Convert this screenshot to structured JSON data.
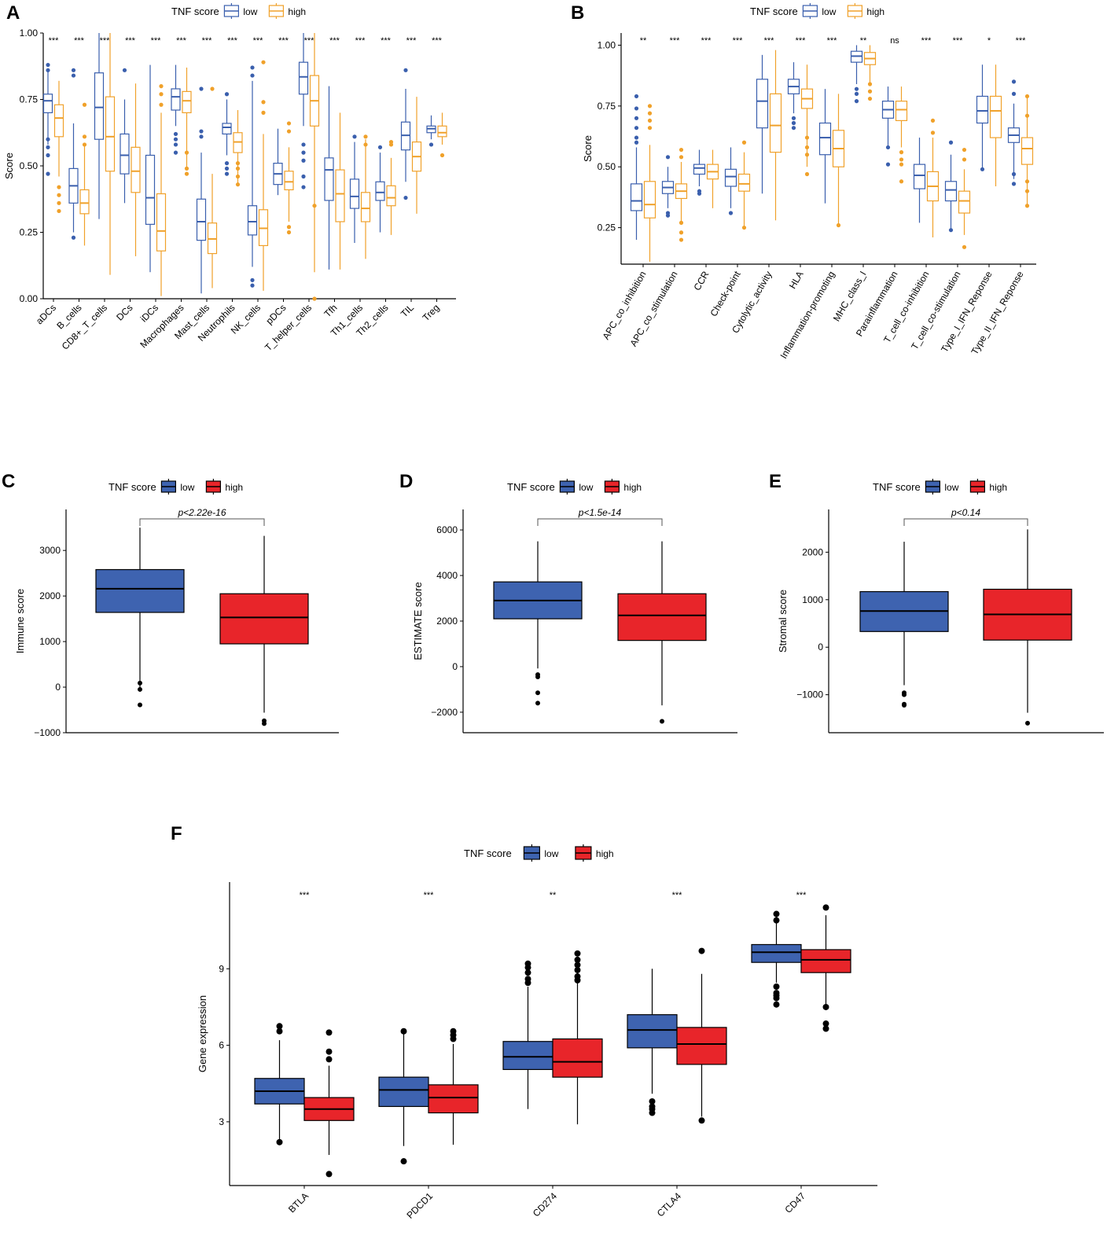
{
  "colors": {
    "low_line": "#3a5fad",
    "high_line": "#f0a12a",
    "low_fill": "#3e63b0",
    "high_fill": "#e8252a",
    "black": "#000000"
  },
  "legend": {
    "title": "TNF score",
    "low": "low",
    "high": "high"
  },
  "chart_data": [
    {
      "panel": "A",
      "type": "box",
      "ylabel": "Score",
      "ylim": [
        0,
        1.0
      ],
      "yticks": [
        0.0,
        0.25,
        0.5,
        0.75,
        1.0
      ],
      "ytick_labels": [
        "0.00",
        "0.25",
        "0.50",
        "0.75",
        "1.00"
      ],
      "categories": [
        "aDCs",
        "B_cells",
        "CD8+_T_cells",
        "DCs",
        "iDCs",
        "Macrophages",
        "Mast_cells",
        "Neutrophils",
        "NK_cells",
        "pDCs",
        "T_helper_cells",
        "Tfh",
        "Th1_cells",
        "Th2_cells",
        "TIL",
        "Treg"
      ],
      "significance": [
        "***",
        "***",
        "***",
        "***",
        "***",
        "***",
        "***",
        "***",
        "***",
        "***",
        "***",
        "***",
        "***",
        "***",
        "***",
        "***"
      ],
      "series": [
        {
          "name": "low",
          "boxes": [
            [
              0.58,
              0.7,
              0.745,
              0.77,
              0.86
            ],
            [
              0.25,
              0.36,
              0.425,
              0.49,
              0.66
            ],
            [
              0.3,
              0.6,
              0.72,
              0.85,
              1.0
            ],
            [
              0.36,
              0.47,
              0.54,
              0.62,
              0.75
            ],
            [
              0.1,
              0.28,
              0.38,
              0.54,
              0.88
            ],
            [
              0.65,
              0.71,
              0.76,
              0.79,
              0.88
            ],
            [
              0.02,
              0.22,
              0.29,
              0.375,
              0.55
            ],
            [
              0.54,
              0.62,
              0.645,
              0.66,
              0.75
            ],
            [
              0.12,
              0.24,
              0.29,
              0.35,
              0.82
            ],
            [
              0.39,
              0.43,
              0.47,
              0.51,
              0.64
            ],
            [
              0.65,
              0.77,
              0.835,
              0.89,
              1.0
            ],
            [
              0.11,
              0.37,
              0.485,
              0.53,
              0.8
            ],
            [
              0.21,
              0.34,
              0.385,
              0.45,
              0.59
            ],
            [
              0.25,
              0.37,
              0.4,
              0.44,
              0.55
            ],
            [
              0.44,
              0.56,
              0.615,
              0.665,
              0.79
            ],
            [
              0.6,
              0.625,
              0.64,
              0.65,
              0.69
            ]
          ],
          "outliers": [
            [
              0.88,
              0.86,
              0.6,
              0.57,
              0.54,
              0.47
            ],
            [
              0.86,
              0.84,
              0.23
            ],
            [],
            [
              0.86
            ],
            [],
            [
              0.62,
              0.6,
              0.58,
              0.55
            ],
            [
              0.79,
              0.63,
              0.61
            ],
            [
              0.77,
              0.51,
              0.49,
              0.47
            ],
            [
              0.87,
              0.84,
              0.07,
              0.05
            ],
            [],
            [
              0.58,
              0.55,
              0.52,
              0.46,
              0.42
            ],
            [],
            [
              0.61
            ],
            [
              0.57
            ],
            [
              0.38,
              0.86
            ],
            [
              0.58
            ]
          ]
        },
        {
          "name": "high",
          "boxes": [
            [
              0.46,
              0.61,
              0.68,
              0.73,
              0.82
            ],
            [
              0.2,
              0.32,
              0.36,
              0.41,
              0.58
            ],
            [
              0.09,
              0.48,
              0.61,
              0.76,
              1.0
            ],
            [
              0.16,
              0.4,
              0.48,
              0.57,
              0.81
            ],
            [
              0.01,
              0.18,
              0.255,
              0.395,
              0.7
            ],
            [
              0.49,
              0.7,
              0.745,
              0.78,
              0.87
            ],
            [
              0.04,
              0.17,
              0.225,
              0.285,
              0.47
            ],
            [
              0.43,
              0.55,
              0.59,
              0.625,
              0.71
            ],
            [
              0.03,
              0.2,
              0.265,
              0.335,
              0.62
            ],
            [
              0.29,
              0.41,
              0.44,
              0.48,
              0.57
            ],
            [
              0.1,
              0.65,
              0.745,
              0.84,
              1.0
            ],
            [
              0.11,
              0.29,
              0.395,
              0.485,
              0.7
            ],
            [
              0.15,
              0.29,
              0.34,
              0.4,
              0.6
            ],
            [
              0.24,
              0.35,
              0.38,
              0.425,
              0.53
            ],
            [
              0.32,
              0.48,
              0.535,
              0.59,
              0.76
            ],
            [
              0.58,
              0.61,
              0.625,
              0.65,
              0.7
            ]
          ],
          "outliers": [
            [
              0.42,
              0.39,
              0.36,
              0.33
            ],
            [
              0.73,
              0.61,
              0.58
            ],
            [],
            [],
            [
              0.8,
              0.77,
              0.73
            ],
            [
              0.49,
              0.47,
              0.55
            ],
            [
              0.79
            ],
            [
              0.51,
              0.49,
              0.46,
              0.43
            ],
            [
              0.89,
              0.74,
              0.7
            ],
            [
              0.66,
              0.63,
              0.27,
              0.25
            ],
            [
              0.35,
              0.0
            ],
            [],
            [
              0.61,
              0.58
            ],
            [
              0.59,
              0.58
            ],
            [],
            [
              0.54
            ]
          ]
        }
      ]
    },
    {
      "panel": "B",
      "type": "box",
      "ylabel": "Score",
      "ylim": [
        0.1,
        1.05
      ],
      "yticks": [
        0.25,
        0.5,
        0.75,
        1.0
      ],
      "ytick_labels": [
        "0.25",
        "0.50",
        "0.75",
        "1.00"
      ],
      "categories": [
        "APC_co_inhibition",
        "APC_co_stimulation",
        "CCR",
        "Check-point",
        "Cytolytic_activity",
        "HLA",
        "Inflammation-promoting",
        "MHC_class_I",
        "Parainflammation",
        "T_cell_co-inhibition",
        "T_cell_co-stimulation",
        "Type_I_IFN_Reponse",
        "Type_II_IFN_Reponse"
      ],
      "significance": [
        "**",
        "***",
        "***",
        "***",
        "***",
        "***",
        "***",
        "**",
        "ns",
        "***",
        "***",
        "*",
        "***"
      ],
      "series": [
        {
          "name": "low",
          "boxes": [
            [
              0.2,
              0.32,
              0.36,
              0.43,
              0.58
            ],
            [
              0.33,
              0.39,
              0.415,
              0.44,
              0.5
            ],
            [
              0.42,
              0.47,
              0.495,
              0.51,
              0.57
            ],
            [
              0.33,
              0.42,
              0.46,
              0.49,
              0.58
            ],
            [
              0.39,
              0.66,
              0.77,
              0.86,
              0.96
            ],
            [
              0.72,
              0.8,
              0.83,
              0.86,
              0.93
            ],
            [
              0.35,
              0.55,
              0.62,
              0.68,
              0.82
            ],
            [
              0.84,
              0.93,
              0.955,
              0.975,
              1.0
            ],
            [
              0.58,
              0.7,
              0.735,
              0.77,
              0.83
            ],
            [
              0.27,
              0.41,
              0.465,
              0.51,
              0.62
            ],
            [
              0.24,
              0.36,
              0.405,
              0.44,
              0.55
            ],
            [
              0.49,
              0.68,
              0.73,
              0.79,
              0.92
            ],
            [
              0.45,
              0.6,
              0.63,
              0.66,
              0.76
            ]
          ],
          "outliers": [
            [
              0.79,
              0.74,
              0.7,
              0.66,
              0.62,
              0.6
            ],
            [
              0.54,
              0.31,
              0.3
            ],
            [
              0.4,
              0.39
            ],
            [
              0.31
            ],
            [],
            [
              0.7,
              0.68,
              0.66
            ],
            [],
            [
              0.82,
              0.8,
              0.77
            ],
            [
              0.51,
              0.58
            ],
            [],
            [
              0.6,
              0.24
            ],
            [
              0.49
            ],
            [
              0.85,
              0.8,
              0.47,
              0.43
            ]
          ]
        },
        {
          "name": "high",
          "boxes": [
            [
              0.11,
              0.29,
              0.345,
              0.44,
              0.59
            ],
            [
              0.27,
              0.37,
              0.4,
              0.43,
              0.52
            ],
            [
              0.33,
              0.45,
              0.48,
              0.51,
              0.57
            ],
            [
              0.25,
              0.4,
              0.43,
              0.47,
              0.56
            ],
            [
              0.28,
              0.56,
              0.67,
              0.8,
              0.98
            ],
            [
              0.5,
              0.74,
              0.78,
              0.82,
              0.92
            ],
            [
              0.26,
              0.5,
              0.575,
              0.65,
              0.8
            ],
            [
              0.84,
              0.92,
              0.945,
              0.97,
              1.0
            ],
            [
              0.58,
              0.69,
              0.735,
              0.77,
              0.83
            ],
            [
              0.21,
              0.36,
              0.42,
              0.48,
              0.62
            ],
            [
              0.22,
              0.31,
              0.36,
              0.4,
              0.49
            ],
            [
              0.42,
              0.62,
              0.73,
              0.79,
              0.92
            ],
            [
              0.34,
              0.51,
              0.575,
              0.62,
              0.79
            ]
          ],
          "outliers": [
            [
              0.75,
              0.72,
              0.69,
              0.66
            ],
            [
              0.57,
              0.54,
              0.27,
              0.23,
              0.2
            ],
            [],
            [
              0.6,
              0.25
            ],
            [],
            [
              0.62,
              0.58,
              0.55,
              0.47
            ],
            [
              0.26
            ],
            [
              0.84,
              0.81,
              0.78
            ],
            [
              0.56,
              0.53,
              0.51,
              0.44
            ],
            [
              0.69,
              0.64
            ],
            [
              0.57,
              0.53,
              0.17
            ],
            [],
            [
              0.79,
              0.71,
              0.44,
              0.4,
              0.34
            ]
          ]
        }
      ]
    },
    {
      "panel": "C",
      "type": "box",
      "ylabel": "Immune score",
      "ylim": [
        -1000,
        3900
      ],
      "yticks": [
        -1000,
        0,
        1000,
        2000,
        3000
      ],
      "ytick_labels": [
        "−1000",
        "0",
        "1000",
        "2000",
        "3000"
      ],
      "categories": [
        "low",
        "high"
      ],
      "pvalue": "p<2.22e-16",
      "boxes": [
        [
          -100,
          1640,
          2160,
          2580,
          3500
        ],
        [
          -560,
          950,
          1530,
          2050,
          3320
        ]
      ],
      "outliers": [
        [
          90,
          -50,
          -390
        ],
        [
          -740,
          -800
        ]
      ]
    },
    {
      "panel": "D",
      "type": "box",
      "ylabel": "ESTIMATE score",
      "ylim": [
        -2900,
        6900
      ],
      "yticks": [
        -2000,
        0,
        2000,
        4000,
        6000
      ],
      "ytick_labels": [
        "−2000",
        "0",
        "2000",
        "4000",
        "6000"
      ],
      "categories": [
        "low",
        "high"
      ],
      "pvalue": "p<1.5e-14",
      "boxes": [
        [
          -80,
          2100,
          2900,
          3720,
          5500
        ],
        [
          -1700,
          1150,
          2250,
          3200,
          5500
        ]
      ],
      "outliers": [
        [
          -350,
          -450,
          -1150,
          -1600
        ],
        [
          -2400
        ]
      ]
    },
    {
      "panel": "E",
      "type": "box",
      "ylabel": "Stromal score",
      "ylim": [
        -1800,
        2900
      ],
      "yticks": [
        -1000,
        0,
        1000,
        2000
      ],
      "ytick_labels": [
        "−1000",
        "0",
        "1000",
        "2000"
      ],
      "categories": [
        "low",
        "high"
      ],
      "pvalue": "p<0.14",
      "boxes": [
        [
          -800,
          330,
          760,
          1170,
          2220
        ],
        [
          -1380,
          150,
          690,
          1220,
          2480
        ]
      ],
      "outliers": [
        [
          -960,
          -1000,
          -1200,
          -1220
        ],
        [
          -1600
        ]
      ]
    },
    {
      "panel": "F",
      "type": "box",
      "ylabel": "Gene expression",
      "ylim": [
        0.5,
        12.4
      ],
      "yticks": [
        3,
        6,
        9
      ],
      "ytick_labels": [
        "3",
        "6",
        "9"
      ],
      "categories": [
        "BTLA",
        "PDCD1",
        "CD274",
        "CTLA4",
        "CD47"
      ],
      "significance": [
        "***",
        "***",
        "**",
        "***",
        "***"
      ],
      "series": [
        {
          "name": "low",
          "boxes": [
            [
              2.25,
              3.7,
              4.2,
              4.7,
              6.2
            ],
            [
              2.05,
              3.6,
              4.25,
              4.75,
              6.5
            ],
            [
              3.5,
              5.05,
              5.55,
              6.15,
              8.3
            ],
            [
              4.1,
              5.9,
              6.6,
              7.2,
              9.0
            ],
            [
              8.45,
              9.25,
              9.65,
              9.95,
              11.2
            ]
          ],
          "outliers": [
            [
              6.75,
              6.55,
              2.2
            ],
            [
              6.55,
              1.45
            ],
            [
              9.2,
              9.05,
              8.85,
              8.6,
              8.45
            ],
            [
              3.8,
              3.6,
              3.5,
              3.35
            ],
            [
              11.15,
              10.9,
              8.3,
              8.05,
              7.95,
              7.85,
              7.6
            ]
          ]
        },
        {
          "name": "high",
          "boxes": [
            [
              1.7,
              3.05,
              3.5,
              3.95,
              5.2
            ],
            [
              2.1,
              3.35,
              3.95,
              4.45,
              6.05
            ],
            [
              2.9,
              4.75,
              5.35,
              6.25,
              9.1
            ],
            [
              3.2,
              5.25,
              6.05,
              6.7,
              8.8
            ],
            [
              7.55,
              8.85,
              9.35,
              9.75,
              11.1
            ]
          ],
          "outliers": [
            [
              6.5,
              5.75,
              5.45,
              0.95
            ],
            [
              6.55,
              6.4,
              6.25
            ],
            [
              9.6,
              9.35,
              9.15,
              8.95,
              8.7,
              8.55
            ],
            [
              9.7,
              3.05
            ],
            [
              11.4,
              7.5,
              6.85,
              6.65
            ]
          ]
        }
      ]
    }
  ]
}
